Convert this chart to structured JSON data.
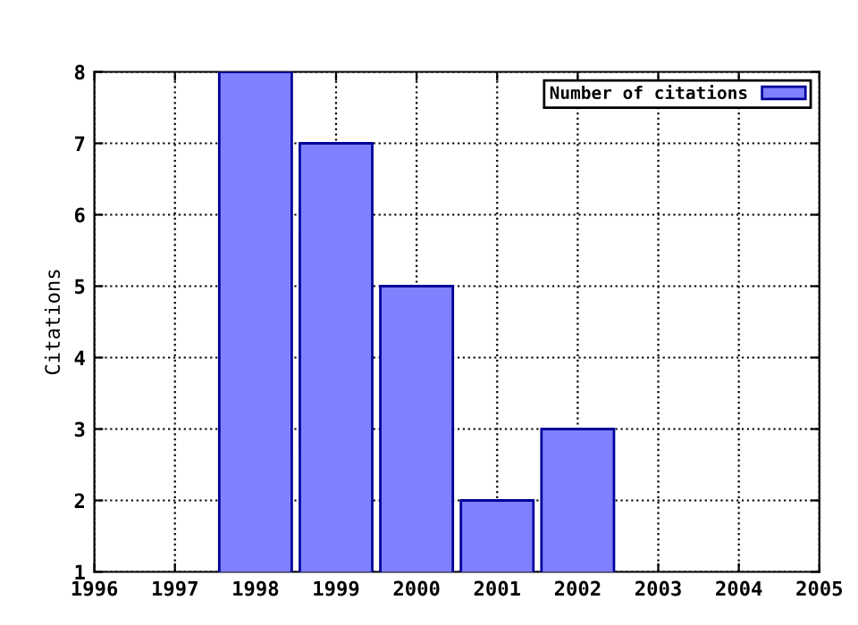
{
  "chart_data": {
    "type": "bar",
    "ylabel": "Citations",
    "x": [
      1998,
      1999,
      2000,
      2001,
      2002
    ],
    "series": [
      {
        "name": "Number of citations",
        "color": "#8080ff",
        "values": [
          8,
          7,
          5,
          2,
          3
        ]
      }
    ],
    "xlim": [
      1996,
      2005
    ],
    "xticks": [
      1996,
      1997,
      1998,
      1999,
      2000,
      2001,
      2002,
      2003,
      2004,
      2005
    ],
    "ylim": [
      1,
      8
    ],
    "yticks": [
      1,
      2,
      3,
      4,
      5,
      6,
      7,
      8
    ],
    "grid": true,
    "legend": "top right"
  }
}
